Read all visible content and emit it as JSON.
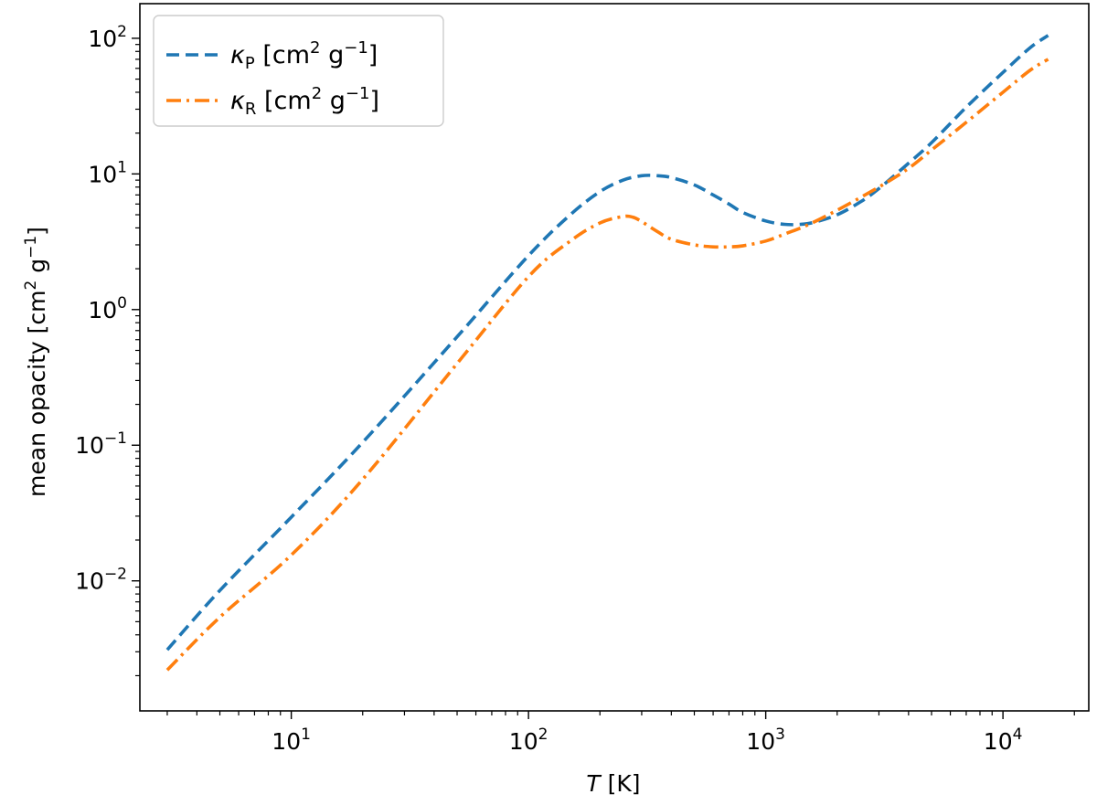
{
  "chart_data": {
    "type": "line",
    "x_scale": "log",
    "y_scale": "log",
    "xlim": [
      2.3,
      23000
    ],
    "ylim": [
      0.0011,
      180
    ],
    "xlabel": {
      "var": "T",
      "unit": "[K]"
    },
    "ylabel": {
      "base": "mean opacity [cm",
      "sup1": "2",
      "mid": " g",
      "sup2": "−1",
      "end": "]"
    },
    "x_ticks": [
      {
        "value": 10,
        "base": "10",
        "exp": "1"
      },
      {
        "value": 100,
        "base": "10",
        "exp": "2"
      },
      {
        "value": 1000,
        "base": "10",
        "exp": "3"
      },
      {
        "value": 10000,
        "base": "10",
        "exp": "4"
      }
    ],
    "y_ticks": [
      {
        "value": 0.01,
        "base": "10",
        "exp": "−2"
      },
      {
        "value": 0.1,
        "base": "10",
        "exp": "−1"
      },
      {
        "value": 1,
        "base": "10",
        "exp": "0"
      },
      {
        "value": 10,
        "base": "10",
        "exp": "1"
      },
      {
        "value": 100,
        "base": "10",
        "exp": "2"
      }
    ],
    "legend_position": "top-left",
    "series": [
      {
        "name": "kappa_P",
        "symbol": "κ",
        "sub": "P",
        "unit_a": " [cm",
        "unit_sup1": "2",
        "unit_b": " g",
        "unit_sup2": "−1",
        "unit_c": "]",
        "color": "#1f77b4",
        "dash": "14,7",
        "x": [
          3,
          5,
          10,
          20,
          50,
          100,
          150,
          200,
          250,
          300,
          350,
          400,
          500,
          600,
          700,
          800,
          1000,
          1200,
          1400,
          1600,
          2000,
          2500,
          3000,
          4000,
          5000,
          7000,
          10000,
          13000,
          15500
        ],
        "y": [
          0.0031,
          0.0085,
          0.0295,
          0.105,
          0.63,
          2.5,
          5.0,
          7.4,
          9.0,
          9.7,
          9.7,
          9.4,
          8.3,
          7.0,
          6.0,
          5.2,
          4.5,
          4.25,
          4.25,
          4.4,
          5.0,
          6.2,
          7.8,
          12,
          17,
          31,
          56,
          85,
          105
        ]
      },
      {
        "name": "kappa_R",
        "symbol": "κ",
        "sub": "R",
        "unit_a": " [cm",
        "unit_sup1": "2",
        "unit_b": " g",
        "unit_sup2": "−1",
        "unit_c": "]",
        "color": "#ff7f0e",
        "dash": "16,6,3,6",
        "x": [
          3,
          5,
          10,
          20,
          50,
          100,
          150,
          200,
          250,
          275,
          300,
          350,
          400,
          500,
          600,
          700,
          800,
          1000,
          1200,
          1500,
          2000,
          3000,
          4000,
          5000,
          7000,
          10000,
          13000,
          15500
        ],
        "y": [
          0.0022,
          0.0054,
          0.0155,
          0.056,
          0.4,
          1.75,
          3.2,
          4.35,
          4.85,
          4.8,
          4.45,
          3.75,
          3.3,
          3.0,
          2.9,
          2.9,
          2.95,
          3.2,
          3.6,
          4.2,
          5.4,
          8.0,
          11,
          15,
          24,
          40,
          58,
          70
        ]
      }
    ]
  }
}
